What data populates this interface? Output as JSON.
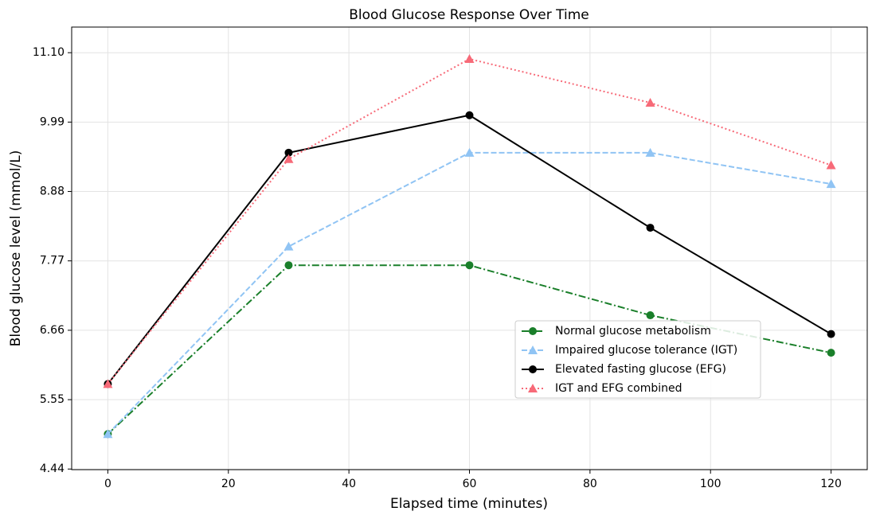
{
  "chart_data": {
    "type": "line",
    "title": "Blood Glucose Response Over Time",
    "xlabel": "Elapsed time (minutes)",
    "ylabel": "Blood glucose level (mmol/L)",
    "x": [
      0,
      30,
      60,
      90,
      120
    ],
    "series": [
      {
        "name": "Normal glucose metabolism",
        "color": "#1a7f2a",
        "linestyle": "dashdot",
        "marker": "circle",
        "values": [
          5.0,
          7.7,
          7.7,
          6.9,
          6.3
        ]
      },
      {
        "name": "Impaired glucose tolerance (IGT)",
        "color": "#90c4f4",
        "linestyle": "dashed",
        "marker": "triangle",
        "values": [
          5.0,
          8.0,
          9.5,
          9.5,
          9.0
        ]
      },
      {
        "name": "Elevated fasting glucose (EFG)",
        "color": "#000000",
        "linestyle": "solid",
        "marker": "circle",
        "values": [
          5.8,
          9.5,
          10.1,
          8.3,
          6.6
        ]
      },
      {
        "name": "IGT and EFG combined",
        "color": "#f76a78",
        "linestyle": "dotted",
        "marker": "triangle",
        "values": [
          5.8,
          9.4,
          11.0,
          10.3,
          9.3
        ]
      }
    ],
    "xlim": [
      -6,
      126
    ],
    "xticks": [
      0,
      20,
      40,
      60,
      80,
      100,
      120
    ],
    "ylim": [
      4.43,
      11.51
    ],
    "yticks": [
      4.44,
      5.55,
      6.66,
      7.77,
      8.88,
      9.99,
      {
        "value": 11.1,
        "label": "11.10"
      }
    ],
    "grid": true,
    "legend": "best"
  }
}
